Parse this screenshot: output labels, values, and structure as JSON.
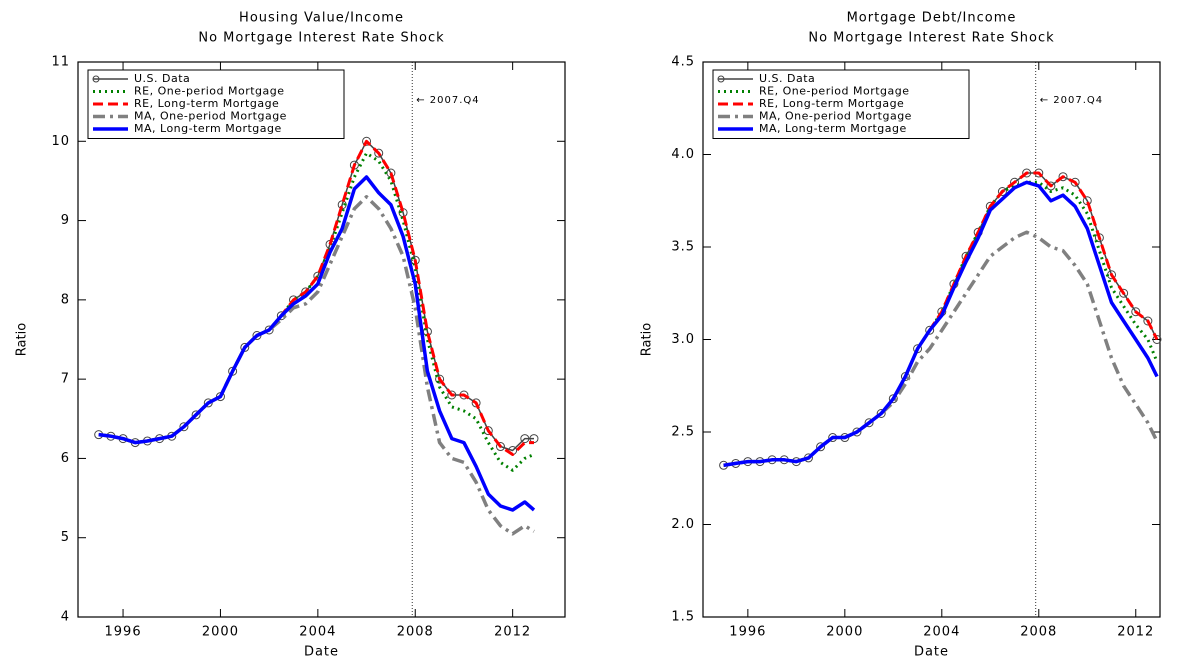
{
  "chart_data": [
    {
      "type": "line",
      "title": "Housing Value/Income",
      "subtitle": "No Mortgage Interest Rate Shock",
      "xlabel": "Date",
      "ylabel": "Ratio",
      "xlim": [
        1994.15,
        2014.15
      ],
      "xticks": [
        1996,
        2000,
        2004,
        2008,
        2012
      ],
      "ylim": [
        4,
        11
      ],
      "yticks": [
        4,
        5,
        6,
        7,
        8,
        9,
        10,
        11
      ],
      "legend": "upper left",
      "annotation": {
        "x": 2007.875,
        "label": "← 2007.Q4"
      },
      "x": [
        1995,
        1995.5,
        1996,
        1996.5,
        1997,
        1997.5,
        1998,
        1998.5,
        1999,
        1999.5,
        2000,
        2000.5,
        2001,
        2001.5,
        2002,
        2002.5,
        2003,
        2003.5,
        2004,
        2004.5,
        2005,
        2005.5,
        2006,
        2006.5,
        2007,
        2007.5,
        2008,
        2008.5,
        2009,
        2009.5,
        2010,
        2010.5,
        2011,
        2011.5,
        2012,
        2012.5,
        2012.875
      ],
      "series": [
        {
          "name": "U.S. Data",
          "color": "#444444",
          "line_style": "solid-markers",
          "values": [
            6.3,
            6.28,
            6.25,
            6.2,
            6.22,
            6.25,
            6.28,
            6.4,
            6.55,
            6.7,
            6.78,
            7.1,
            7.4,
            7.55,
            7.62,
            7.8,
            8.0,
            8.1,
            8.3,
            8.7,
            9.2,
            9.7,
            10.0,
            9.85,
            9.6,
            9.1,
            8.5,
            7.6,
            7.0,
            6.8,
            6.8,
            6.7,
            6.35,
            6.15,
            6.1,
            6.25,
            6.25
          ]
        },
        {
          "name": "RE, One-period Mortgage",
          "color": "#008000",
          "line_style": "dotted",
          "values": [
            6.3,
            6.28,
            6.25,
            6.2,
            6.22,
            6.25,
            6.28,
            6.4,
            6.55,
            6.7,
            6.78,
            7.1,
            7.4,
            7.55,
            7.62,
            7.8,
            8.0,
            8.1,
            8.3,
            8.65,
            9.1,
            9.55,
            9.85,
            9.75,
            9.5,
            9.0,
            8.4,
            7.5,
            6.9,
            6.65,
            6.6,
            6.5,
            6.2,
            5.95,
            5.85,
            6.0,
            6.05
          ]
        },
        {
          "name": "RE, Long-term Mortgage",
          "color": "#ff0000",
          "line_style": "dashed",
          "values": [
            6.3,
            6.28,
            6.25,
            6.2,
            6.22,
            6.25,
            6.28,
            6.4,
            6.55,
            6.7,
            6.78,
            7.1,
            7.4,
            7.55,
            7.62,
            7.8,
            8.0,
            8.1,
            8.3,
            8.7,
            9.2,
            9.7,
            10.0,
            9.85,
            9.6,
            9.1,
            8.5,
            7.6,
            7.0,
            6.8,
            6.8,
            6.7,
            6.35,
            6.15,
            6.05,
            6.2,
            6.2
          ]
        },
        {
          "name": "MA, One-period Mortgage",
          "color": "#808080",
          "line_style": "dashdot",
          "values": [
            6.3,
            6.28,
            6.25,
            6.2,
            6.22,
            6.25,
            6.28,
            6.4,
            6.55,
            6.7,
            6.78,
            7.1,
            7.4,
            7.55,
            7.62,
            7.75,
            7.9,
            7.95,
            8.1,
            8.45,
            8.8,
            9.15,
            9.3,
            9.15,
            8.9,
            8.55,
            7.9,
            6.9,
            6.2,
            6.0,
            5.95,
            5.7,
            5.35,
            5.15,
            5.05,
            5.15,
            5.08
          ]
        },
        {
          "name": "MA, Long-term Mortgage",
          "color": "#0000ff",
          "line_style": "solid",
          "values": [
            6.3,
            6.28,
            6.25,
            6.2,
            6.22,
            6.25,
            6.28,
            6.4,
            6.55,
            6.7,
            6.78,
            7.1,
            7.4,
            7.55,
            7.62,
            7.8,
            7.95,
            8.05,
            8.2,
            8.6,
            8.9,
            9.4,
            9.55,
            9.35,
            9.2,
            8.8,
            8.2,
            7.1,
            6.6,
            6.25,
            6.2,
            5.9,
            5.55,
            5.4,
            5.35,
            5.45,
            5.35
          ]
        }
      ]
    },
    {
      "type": "line",
      "title": "Mortgage Debt/Income",
      "subtitle": "No Mortgage Interest Rate Shock",
      "xlabel": "Date",
      "ylabel": "Ratio",
      "xlim": [
        1994.15,
        2013.0
      ],
      "xticks": [
        1996,
        2000,
        2004,
        2008,
        2012
      ],
      "ylim": [
        1.5,
        4.5
      ],
      "yticks": [
        1.5,
        {
          "value": 2,
          "label": "2.0"
        },
        2.5,
        {
          "value": 3,
          "label": "3.0"
        },
        3.5,
        {
          "value": 4,
          "label": "4.0"
        },
        4.5
      ],
      "legend": "upper left",
      "annotation": {
        "x": 2007.875,
        "label": "← 2007.Q4"
      },
      "x": [
        1995,
        1995.5,
        1996,
        1996.5,
        1997,
        1997.5,
        1998,
        1998.5,
        1999,
        1999.5,
        2000,
        2000.5,
        2001,
        2001.5,
        2002,
        2002.5,
        2003,
        2003.5,
        2004,
        2004.5,
        2005,
        2005.5,
        2006,
        2006.5,
        2007,
        2007.5,
        2008,
        2008.5,
        2009,
        2009.5,
        2010,
        2010.5,
        2011,
        2011.5,
        2012,
        2012.5,
        2012.875
      ],
      "series": [
        {
          "name": "U.S. Data",
          "color": "#444444",
          "line_style": "solid-markers",
          "values": [
            2.32,
            2.33,
            2.34,
            2.34,
            2.35,
            2.35,
            2.34,
            2.36,
            2.42,
            2.47,
            2.47,
            2.5,
            2.55,
            2.6,
            2.68,
            2.8,
            2.95,
            3.05,
            3.15,
            3.3,
            3.45,
            3.58,
            3.72,
            3.8,
            3.85,
            3.9,
            3.9,
            3.83,
            3.88,
            3.85,
            3.75,
            3.55,
            3.35,
            3.25,
            3.15,
            3.1,
            3.0
          ]
        },
        {
          "name": "RE, One-period Mortgage",
          "color": "#008000",
          "line_style": "dotted",
          "values": [
            2.32,
            2.33,
            2.34,
            2.34,
            2.35,
            2.35,
            2.34,
            2.36,
            2.42,
            2.47,
            2.47,
            2.5,
            2.55,
            2.6,
            2.68,
            2.8,
            2.95,
            3.05,
            3.15,
            3.3,
            3.45,
            3.58,
            3.72,
            3.8,
            3.83,
            3.85,
            3.85,
            3.8,
            3.82,
            3.78,
            3.68,
            3.48,
            3.28,
            3.18,
            3.08,
            3.0,
            2.88
          ]
        },
        {
          "name": "RE, Long-term Mortgage",
          "color": "#ff0000",
          "line_style": "dashed",
          "values": [
            2.32,
            2.33,
            2.34,
            2.34,
            2.35,
            2.35,
            2.34,
            2.36,
            2.42,
            2.47,
            2.47,
            2.5,
            2.55,
            2.6,
            2.68,
            2.8,
            2.95,
            3.05,
            3.15,
            3.3,
            3.45,
            3.58,
            3.72,
            3.8,
            3.85,
            3.9,
            3.9,
            3.83,
            3.88,
            3.85,
            3.75,
            3.55,
            3.35,
            3.25,
            3.15,
            3.1,
            3.0
          ]
        },
        {
          "name": "MA, One-period Mortgage",
          "color": "#808080",
          "line_style": "dashdot",
          "values": [
            2.32,
            2.33,
            2.34,
            2.34,
            2.35,
            2.35,
            2.34,
            2.36,
            2.42,
            2.47,
            2.47,
            2.5,
            2.55,
            2.6,
            2.66,
            2.76,
            2.88,
            2.95,
            3.05,
            3.15,
            3.25,
            3.35,
            3.45,
            3.5,
            3.55,
            3.58,
            3.55,
            3.5,
            3.48,
            3.4,
            3.3,
            3.1,
            2.9,
            2.75,
            2.65,
            2.55,
            2.45
          ]
        },
        {
          "name": "MA, Long-term Mortgage",
          "color": "#0000ff",
          "line_style": "solid",
          "values": [
            2.32,
            2.33,
            2.34,
            2.34,
            2.35,
            2.35,
            2.34,
            2.36,
            2.42,
            2.47,
            2.47,
            2.5,
            2.55,
            2.6,
            2.68,
            2.8,
            2.95,
            3.05,
            3.13,
            3.28,
            3.42,
            3.55,
            3.7,
            3.76,
            3.82,
            3.85,
            3.83,
            3.75,
            3.78,
            3.72,
            3.6,
            3.4,
            3.2,
            3.1,
            3.0,
            2.9,
            2.8
          ]
        }
      ]
    }
  ]
}
